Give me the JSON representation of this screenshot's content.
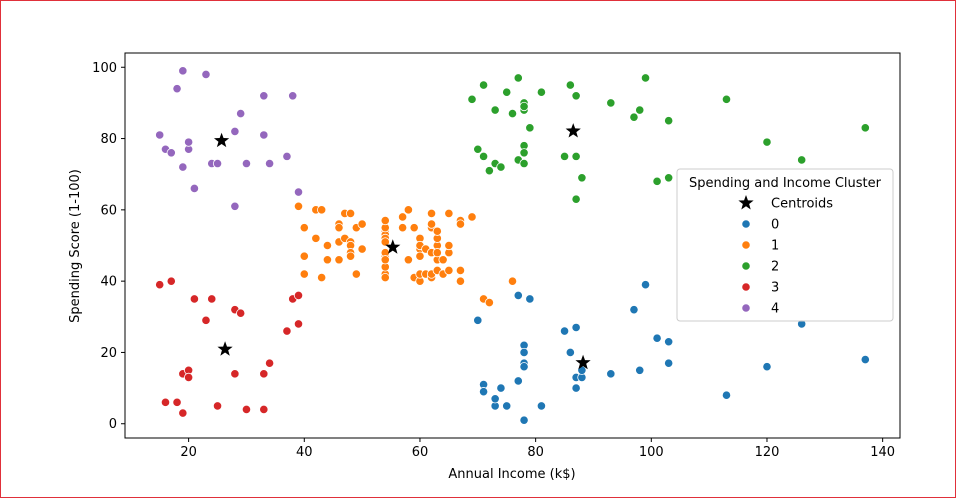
{
  "chart_data": {
    "type": "scatter",
    "title": "",
    "xlabel": "Annual Income (k$)",
    "ylabel": "Spending Score (1-100)",
    "xlim": [
      9,
      143
    ],
    "ylim": [
      -4,
      104
    ],
    "xticks": [
      20,
      40,
      60,
      80,
      100,
      120,
      140
    ],
    "yticks": [
      0,
      20,
      40,
      60,
      80,
      100
    ],
    "grid": false,
    "legend": {
      "title": "Spending and Income Cluster",
      "placement": "center-right",
      "centroid_label": "Centroids",
      "entries": [
        "0",
        "1",
        "2",
        "3",
        "4"
      ]
    },
    "colors": {
      "0": "#1f77b4",
      "1": "#ff7f0e",
      "2": "#2ca02c",
      "3": "#d62728",
      "4": "#9467bd",
      "centroid": "#000000"
    },
    "series": [
      {
        "name": "0",
        "points": [
          [
            70,
            29
          ],
          [
            71,
            11
          ],
          [
            71,
            9
          ],
          [
            72,
            34
          ],
          [
            73,
            5
          ],
          [
            73,
            7
          ],
          [
            74,
            10
          ],
          [
            75,
            5
          ],
          [
            77,
            12
          ],
          [
            77,
            36
          ],
          [
            78,
            22
          ],
          [
            78,
            17
          ],
          [
            78,
            20
          ],
          [
            78,
            16
          ],
          [
            78,
            1
          ],
          [
            79,
            35
          ],
          [
            81,
            5
          ],
          [
            85,
            26
          ],
          [
            86,
            20
          ],
          [
            87,
            27
          ],
          [
            87,
            13
          ],
          [
            87,
            10
          ],
          [
            88,
            13
          ],
          [
            88,
            15
          ],
          [
            93,
            14
          ],
          [
            97,
            32
          ],
          [
            98,
            15
          ],
          [
            99,
            39
          ],
          [
            101,
            24
          ],
          [
            103,
            17
          ],
          [
            103,
            23
          ],
          [
            113,
            8
          ],
          [
            120,
            16
          ],
          [
            126,
            28
          ],
          [
            137,
            18
          ]
        ]
      },
      {
        "name": "1",
        "points": [
          [
            39,
            61
          ],
          [
            40,
            55
          ],
          [
            40,
            47
          ],
          [
            40,
            42
          ],
          [
            42,
            52
          ],
          [
            42,
            60
          ],
          [
            43,
            60
          ],
          [
            43,
            41
          ],
          [
            44,
            50
          ],
          [
            44,
            46
          ],
          [
            46,
            51
          ],
          [
            46,
            46
          ],
          [
            46,
            56
          ],
          [
            46,
            55
          ],
          [
            47,
            52
          ],
          [
            47,
            59
          ],
          [
            48,
            51
          ],
          [
            48,
            59
          ],
          [
            48,
            50
          ],
          [
            48,
            48
          ],
          [
            48,
            47
          ],
          [
            49,
            42
          ],
          [
            49,
            55
          ],
          [
            50,
            49
          ],
          [
            50,
            56
          ],
          [
            54,
            47
          ],
          [
            54,
            54
          ],
          [
            54,
            53
          ],
          [
            54,
            48
          ],
          [
            54,
            52
          ],
          [
            54,
            42
          ],
          [
            54,
            51
          ],
          [
            54,
            55
          ],
          [
            54,
            41
          ],
          [
            54,
            44
          ],
          [
            54,
            57
          ],
          [
            54,
            46
          ],
          [
            57,
            58
          ],
          [
            57,
            55
          ],
          [
            58,
            60
          ],
          [
            58,
            46
          ],
          [
            59,
            55
          ],
          [
            59,
            41
          ],
          [
            60,
            49
          ],
          [
            60,
            40
          ],
          [
            60,
            42
          ],
          [
            60,
            52
          ],
          [
            60,
            47
          ],
          [
            60,
            50
          ],
          [
            61,
            42
          ],
          [
            61,
            49
          ],
          [
            62,
            41
          ],
          [
            62,
            48
          ],
          [
            62,
            59
          ],
          [
            62,
            55
          ],
          [
            62,
            56
          ],
          [
            62,
            42
          ],
          [
            63,
            50
          ],
          [
            63,
            46
          ],
          [
            63,
            43
          ],
          [
            63,
            48
          ],
          [
            63,
            52
          ],
          [
            63,
            54
          ],
          [
            64,
            42
          ],
          [
            64,
            46
          ],
          [
            65,
            48
          ],
          [
            65,
            50
          ],
          [
            65,
            43
          ],
          [
            65,
            59
          ],
          [
            67,
            43
          ],
          [
            67,
            57
          ],
          [
            67,
            56
          ],
          [
            67,
            40
          ],
          [
            69,
            58
          ],
          [
            71,
            35
          ],
          [
            72,
            34
          ],
          [
            76,
            40
          ]
        ]
      },
      {
        "name": "2",
        "points": [
          [
            69,
            91
          ],
          [
            70,
            77
          ],
          [
            71,
            95
          ],
          [
            71,
            75
          ],
          [
            71,
            75
          ],
          [
            72,
            71
          ],
          [
            73,
            88
          ],
          [
            73,
            73
          ],
          [
            74,
            72
          ],
          [
            75,
            93
          ],
          [
            76,
            87
          ],
          [
            77,
            97
          ],
          [
            77,
            74
          ],
          [
            78,
            90
          ],
          [
            78,
            88
          ],
          [
            78,
            89
          ],
          [
            78,
            78
          ],
          [
            78,
            73
          ],
          [
            78,
            76
          ],
          [
            79,
            83
          ],
          [
            81,
            93
          ],
          [
            85,
            75
          ],
          [
            86,
            95
          ],
          [
            87,
            63
          ],
          [
            87,
            75
          ],
          [
            87,
            92
          ],
          [
            88,
            69
          ],
          [
            93,
            90
          ],
          [
            97,
            86
          ],
          [
            98,
            88
          ],
          [
            99,
            97
          ],
          [
            101,
            68
          ],
          [
            103,
            85
          ],
          [
            103,
            69
          ],
          [
            113,
            91
          ],
          [
            120,
            79
          ],
          [
            126,
            74
          ],
          [
            137,
            83
          ]
        ]
      },
      {
        "name": "3",
        "points": [
          [
            15,
            39
          ],
          [
            16,
            6
          ],
          [
            17,
            40
          ],
          [
            18,
            6
          ],
          [
            19,
            3
          ],
          [
            19,
            14
          ],
          [
            20,
            15
          ],
          [
            20,
            13
          ],
          [
            21,
            35
          ],
          [
            23,
            29
          ],
          [
            24,
            35
          ],
          [
            25,
            5
          ],
          [
            28,
            14
          ],
          [
            28,
            32
          ],
          [
            29,
            31
          ],
          [
            30,
            4
          ],
          [
            33,
            4
          ],
          [
            33,
            14
          ],
          [
            34,
            17
          ],
          [
            37,
            26
          ],
          [
            38,
            35
          ],
          [
            39,
            36
          ],
          [
            39,
            28
          ]
        ]
      },
      {
        "name": "4",
        "points": [
          [
            15,
            81
          ],
          [
            16,
            77
          ],
          [
            17,
            76
          ],
          [
            18,
            94
          ],
          [
            19,
            72
          ],
          [
            19,
            99
          ],
          [
            20,
            77
          ],
          [
            20,
            79
          ],
          [
            21,
            66
          ],
          [
            23,
            98
          ],
          [
            24,
            73
          ],
          [
            25,
            73
          ],
          [
            28,
            82
          ],
          [
            28,
            61
          ],
          [
            29,
            87
          ],
          [
            30,
            73
          ],
          [
            33,
            92
          ],
          [
            33,
            81
          ],
          [
            34,
            73
          ],
          [
            37,
            75
          ],
          [
            38,
            92
          ],
          [
            39,
            65
          ]
        ]
      }
    ],
    "centroids": [
      [
        86.5,
        82.1
      ],
      [
        55.3,
        49.5
      ],
      [
        25.7,
        79.4
      ],
      [
        26.3,
        20.9
      ],
      [
        88.2,
        17.1
      ]
    ]
  }
}
